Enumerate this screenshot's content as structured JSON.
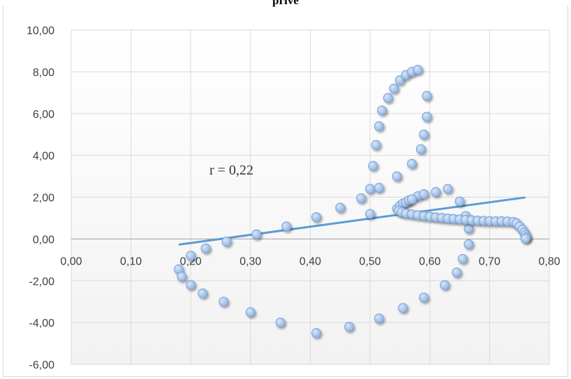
{
  "chart_data": {
    "type": "scatter",
    "title": "prive",
    "xlabel": "",
    "ylabel": "",
    "xlim": [
      0,
      0.8
    ],
    "ylim": [
      -6,
      10
    ],
    "x_ticks": [
      "0,00",
      "0,10",
      "0,20",
      "0,30",
      "0,40",
      "0,50",
      "0,60",
      "0,70",
      "0,80"
    ],
    "y_ticks": [
      "10,00",
      "8,00",
      "6,00",
      "4,00",
      "2,00",
      "0,00",
      "-2,00",
      "-4,00",
      "-6,00"
    ],
    "grid": true,
    "annotation": "r = 0,22",
    "colors": {
      "marker": "#9cbde6",
      "marker_edge": "#7aa3d8",
      "trendline": "#5b9bd5"
    },
    "trendline": {
      "x": [
        0.18,
        0.76
      ],
      "y": [
        -0.27,
        1.99
      ]
    },
    "points": [
      [
        0.18,
        -1.45
      ],
      [
        0.185,
        -1.8
      ],
      [
        0.2,
        -2.2
      ],
      [
        0.2,
        -0.8
      ],
      [
        0.22,
        -2.6
      ],
      [
        0.225,
        -0.45
      ],
      [
        0.255,
        -3.0
      ],
      [
        0.26,
        -0.12
      ],
      [
        0.3,
        -3.5
      ],
      [
        0.31,
        0.22
      ],
      [
        0.35,
        -4.0
      ],
      [
        0.36,
        0.6
      ],
      [
        0.41,
        -4.5
      ],
      [
        0.41,
        1.05
      ],
      [
        0.45,
        1.5
      ],
      [
        0.465,
        -4.2
      ],
      [
        0.485,
        1.95
      ],
      [
        0.5,
        1.2
      ],
      [
        0.5,
        2.4
      ],
      [
        0.505,
        3.5
      ],
      [
        0.51,
        4.5
      ],
      [
        0.515,
        -3.8
      ],
      [
        0.515,
        5.4
      ],
      [
        0.515,
        2.45
      ],
      [
        0.52,
        6.15
      ],
      [
        0.53,
        6.75
      ],
      [
        0.54,
        7.2
      ],
      [
        0.545,
        3.0
      ],
      [
        0.55,
        7.6
      ],
      [
        0.555,
        -3.3
      ],
      [
        0.56,
        7.85
      ],
      [
        0.57,
        3.6
      ],
      [
        0.57,
        8.0
      ],
      [
        0.58,
        8.1
      ],
      [
        0.585,
        4.3
      ],
      [
        0.59,
        5.0
      ],
      [
        0.595,
        6.85
      ],
      [
        0.595,
        5.85
      ],
      [
        0.59,
        -2.8
      ],
      [
        0.58,
        2.05
      ],
      [
        0.59,
        2.15
      ],
      [
        0.61,
        2.25
      ],
      [
        0.63,
        2.4
      ],
      [
        0.625,
        -2.2
      ],
      [
        0.645,
        -1.6
      ],
      [
        0.65,
        1.8
      ],
      [
        0.655,
        -0.95
      ],
      [
        0.665,
        -0.25
      ],
      [
        0.665,
        0.5
      ],
      [
        0.66,
        1.1
      ],
      [
        0.545,
        1.45
      ],
      [
        0.55,
        1.6
      ],
      [
        0.555,
        1.7
      ],
      [
        0.56,
        1.75
      ],
      [
        0.565,
        1.85
      ],
      [
        0.57,
        1.9
      ],
      [
        0.548,
        1.35
      ],
      [
        0.553,
        1.28
      ],
      [
        0.56,
        1.22
      ],
      [
        0.57,
        1.18
      ],
      [
        0.58,
        1.14
      ],
      [
        0.59,
        1.1
      ],
      [
        0.6,
        1.07
      ],
      [
        0.61,
        1.04
      ],
      [
        0.62,
        1.01
      ],
      [
        0.63,
        0.98
      ],
      [
        0.64,
        0.96
      ],
      [
        0.65,
        0.94
      ],
      [
        0.66,
        0.92
      ],
      [
        0.67,
        0.9
      ],
      [
        0.68,
        0.88
      ],
      [
        0.69,
        0.87
      ],
      [
        0.7,
        0.86
      ],
      [
        0.71,
        0.85
      ],
      [
        0.72,
        0.85
      ],
      [
        0.73,
        0.84
      ],
      [
        0.74,
        0.82
      ],
      [
        0.745,
        0.75
      ],
      [
        0.75,
        0.6
      ],
      [
        0.755,
        0.45
      ],
      [
        0.758,
        0.3
      ],
      [
        0.76,
        0.18
      ],
      [
        0.762,
        0.08
      ],
      [
        0.76,
        0.02
      ]
    ]
  }
}
